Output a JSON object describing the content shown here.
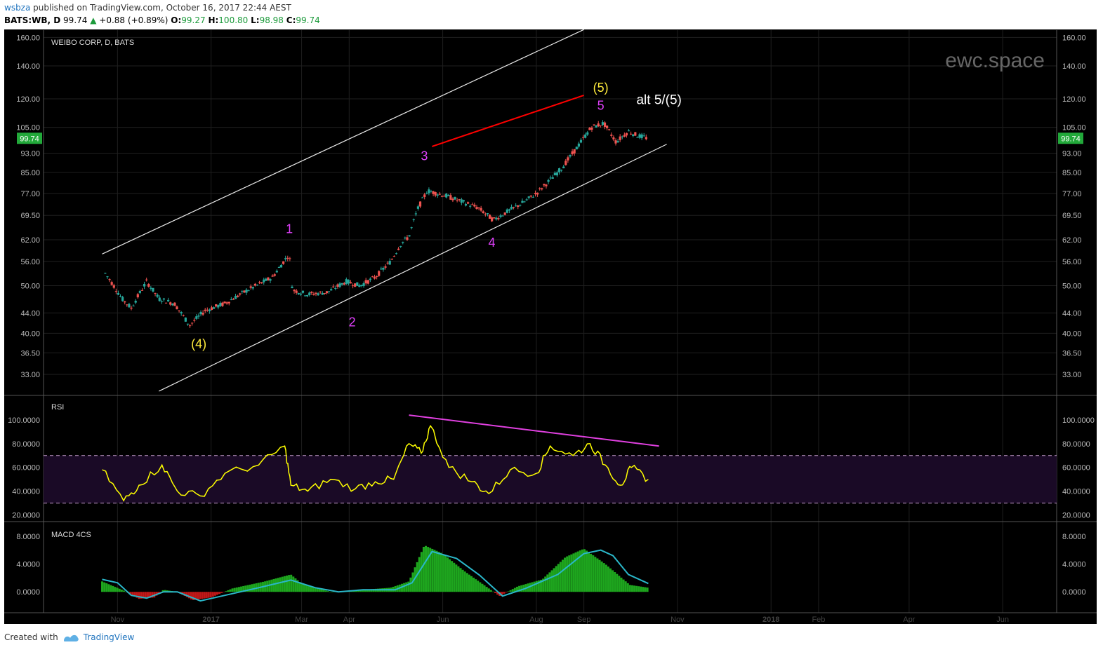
{
  "header": {
    "author": "wsbza",
    "published_text": "published on TradingView.com, October 16, 2017 22:44 AEST",
    "symbol": "BATS:WB, D",
    "price": "99.74",
    "change": "+0.88 (+0.89%)",
    "open_label": "O:",
    "open": "99.27",
    "high_label": "H:",
    "high": "100.80",
    "low_label": "L:",
    "low": "98.98",
    "close_label": "C:",
    "close": "99.74"
  },
  "footer": {
    "created_with": "Created with",
    "brand": "TradingView"
  },
  "colors": {
    "background": "#000000",
    "up": "#26a69a",
    "down": "#ef5350",
    "rsi": "#ffff00",
    "macd_signal": "#2ab7c9",
    "trend_line": "#ff0000",
    "divergence": "#e040e0",
    "wave_yellow": "#ffeb3b",
    "wave_magenta": "#e040fb"
  },
  "chart_data": [
    {
      "type": "candlestick",
      "title": "WEIBO CORP, D, BATS",
      "watermark": "ewc.space",
      "y_scale": "log",
      "ylim": [
        30,
        165
      ],
      "y_ticks": [
        "160.00",
        "140.00",
        "120.00",
        "105.00",
        "93.00",
        "85.00",
        "77.00",
        "69.50",
        "62.00",
        "56.00",
        "50.00",
        "44.00",
        "40.00",
        "36.50",
        "33.00"
      ],
      "x_ticks": [
        "Nov",
        "2017",
        "Mar",
        "Apr",
        "Jun",
        "Aug",
        "Sep",
        "Nov",
        "2018",
        "Feb",
        "Apr",
        "Jun"
      ],
      "last_price_label": "99.74",
      "price_path": [
        [
          "2016-10-24",
          53
        ],
        [
          "2016-11-04",
          47
        ],
        [
          "2016-11-10",
          45
        ],
        [
          "2016-11-20",
          51
        ],
        [
          "2016-11-28",
          47
        ],
        [
          "2016-12-08",
          46
        ],
        [
          "2016-12-18",
          41.5
        ],
        [
          "2016-12-28",
          44.5
        ],
        [
          "2017-01-10",
          46
        ],
        [
          "2017-01-25",
          49
        ],
        [
          "2017-02-10",
          52
        ],
        [
          "2017-02-21",
          58
        ],
        [
          "2017-02-23",
          49
        ],
        [
          "2017-03-05",
          48
        ],
        [
          "2017-03-18",
          48.5
        ],
        [
          "2017-03-30",
          51
        ],
        [
          "2017-04-08",
          50
        ],
        [
          "2017-04-18",
          52
        ],
        [
          "2017-04-28",
          56
        ],
        [
          "2017-05-05",
          61
        ],
        [
          "2017-05-10",
          63
        ],
        [
          "2017-05-16",
          72
        ],
        [
          "2017-05-22",
          78
        ],
        [
          "2017-06-04",
          76
        ],
        [
          "2017-06-14",
          74
        ],
        [
          "2017-06-24",
          72
        ],
        [
          "2017-07-04",
          68
        ],
        [
          "2017-07-14",
          71
        ],
        [
          "2017-07-24",
          74
        ],
        [
          "2017-08-01",
          77
        ],
        [
          "2017-08-10",
          82
        ],
        [
          "2017-08-18",
          87
        ],
        [
          "2017-08-27",
          95
        ],
        [
          "2017-09-06",
          105
        ],
        [
          "2017-09-14",
          107
        ],
        [
          "2017-09-22",
          98
        ],
        [
          "2017-09-30",
          103
        ],
        [
          "2017-10-06",
          101
        ],
        [
          "2017-10-13",
          99.74
        ]
      ],
      "annotations": [
        {
          "text": "(4)",
          "date": "2016-12-24",
          "price": 37.3,
          "color": "yellow"
        },
        {
          "text": "1",
          "date": "2017-02-21",
          "price": 64,
          "color": "magenta"
        },
        {
          "text": "2",
          "date": "2017-04-03",
          "price": 41.3,
          "color": "magenta"
        },
        {
          "text": "3",
          "date": "2017-05-20",
          "price": 90,
          "color": "magenta"
        },
        {
          "text": "4",
          "date": "2017-07-03",
          "price": 60,
          "color": "magenta"
        },
        {
          "text": "(5)",
          "date": "2017-09-12",
          "price": 124,
          "color": "yellow"
        },
        {
          "text": "5",
          "date": "2017-09-12",
          "price": 114,
          "color": "magenta"
        },
        {
          "text": "alt 5/(5)",
          "date": "2017-10-20",
          "price": 117,
          "color": "white"
        }
      ],
      "lines": [
        {
          "name": "upper-channel",
          "from": [
            "2016-10-22",
            58
          ],
          "to": [
            "2017-09-01",
            166
          ],
          "color": "white"
        },
        {
          "name": "lower-channel",
          "from": [
            "2016-11-28",
            30.5
          ],
          "to": [
            "2017-10-25",
            97
          ],
          "color": "white"
        },
        {
          "name": "resistance",
          "from": [
            "2017-05-25",
            96
          ],
          "to": [
            "2017-09-01",
            122
          ],
          "color": "red"
        }
      ]
    },
    {
      "type": "line",
      "title": "RSI",
      "ylim": [
        15,
        120
      ],
      "y_ticks": [
        "100.0000",
        "80.0000",
        "60.0000",
        "40.0000",
        "20.0000"
      ],
      "band": [
        30,
        70
      ],
      "x": [
        "2016-10-22",
        "2016-11-05",
        "2016-11-15",
        "2016-11-30",
        "2016-12-10",
        "2016-12-25",
        "2017-01-10",
        "2017-02-01",
        "2017-02-18",
        "2017-02-22",
        "2017-03-05",
        "2017-03-20",
        "2017-04-05",
        "2017-04-18",
        "2017-04-30",
        "2017-05-10",
        "2017-05-18",
        "2017-05-24",
        "2017-06-05",
        "2017-06-20",
        "2017-07-01",
        "2017-07-15",
        "2017-08-01",
        "2017-08-10",
        "2017-08-25",
        "2017-09-05",
        "2017-09-15",
        "2017-09-25",
        "2017-10-02",
        "2017-10-13"
      ],
      "values": [
        58,
        32,
        45,
        62,
        40,
        36,
        55,
        62,
        78,
        45,
        40,
        50,
        42,
        48,
        50,
        80,
        72,
        95,
        60,
        48,
        38,
        58,
        55,
        78,
        70,
        80,
        62,
        45,
        60,
        50
      ],
      "divergence_line": {
        "from": [
          "2017-05-10",
          104
        ],
        "to": [
          "2017-10-20",
          78
        ]
      }
    },
    {
      "type": "bar",
      "title": "MACD 4CS",
      "ylim": [
        -3,
        10
      ],
      "y_ticks": [
        "8.0000",
        "4.0000",
        "0.0000"
      ],
      "histogram": [
        [
          "2016-10-22",
          1.5
        ],
        [
          "2016-11-05",
          0.2
        ],
        [
          "2016-11-15",
          -1.0
        ],
        [
          "2016-11-25",
          -0.8
        ],
        [
          "2016-12-01",
          0.3
        ],
        [
          "2016-12-10",
          0.0
        ],
        [
          "2016-12-20",
          -1.2
        ],
        [
          "2017-01-01",
          -0.8
        ],
        [
          "2017-01-15",
          0.5
        ],
        [
          "2017-02-05",
          1.5
        ],
        [
          "2017-02-22",
          2.5
        ],
        [
          "2017-03-01",
          1.2
        ],
        [
          "2017-03-20",
          0.0
        ],
        [
          "2017-04-10",
          0.3
        ],
        [
          "2017-04-28",
          0.6
        ],
        [
          "2017-05-10",
          1.5
        ],
        [
          "2017-05-20",
          6.7
        ],
        [
          "2017-06-01",
          5.5
        ],
        [
          "2017-06-15",
          3.0
        ],
        [
          "2017-07-01",
          0.5
        ],
        [
          "2017-07-08",
          -0.6
        ],
        [
          "2017-07-20",
          0.8
        ],
        [
          "2017-08-05",
          1.8
        ],
        [
          "2017-08-20",
          5.0
        ],
        [
          "2017-09-01",
          6.2
        ],
        [
          "2017-09-15",
          4.0
        ],
        [
          "2017-10-01",
          1.0
        ],
        [
          "2017-10-13",
          0.6
        ]
      ],
      "signal": [
        [
          "2016-10-22",
          1.8
        ],
        [
          "2016-11-01",
          1.3
        ],
        [
          "2016-11-10",
          -0.5
        ],
        [
          "2016-11-20",
          -0.9
        ],
        [
          "2016-12-01",
          0.0
        ],
        [
          "2016-12-10",
          0.0
        ],
        [
          "2016-12-25",
          -1.3
        ],
        [
          "2017-01-10",
          -0.5
        ],
        [
          "2017-02-01",
          0.6
        ],
        [
          "2017-02-22",
          1.7
        ],
        [
          "2017-03-10",
          0.6
        ],
        [
          "2017-03-25",
          0.0
        ],
        [
          "2017-04-10",
          0.3
        ],
        [
          "2017-05-01",
          0.3
        ],
        [
          "2017-05-12",
          1.3
        ],
        [
          "2017-05-25",
          5.8
        ],
        [
          "2017-06-10",
          4.8
        ],
        [
          "2017-06-25",
          2.4
        ],
        [
          "2017-07-10",
          -0.6
        ],
        [
          "2017-07-25",
          0.5
        ],
        [
          "2017-08-15",
          2.5
        ],
        [
          "2017-09-01",
          5.5
        ],
        [
          "2017-09-12",
          6.0
        ],
        [
          "2017-09-20",
          5.2
        ],
        [
          "2017-09-30",
          2.5
        ],
        [
          "2017-10-13",
          1.2
        ]
      ]
    }
  ]
}
